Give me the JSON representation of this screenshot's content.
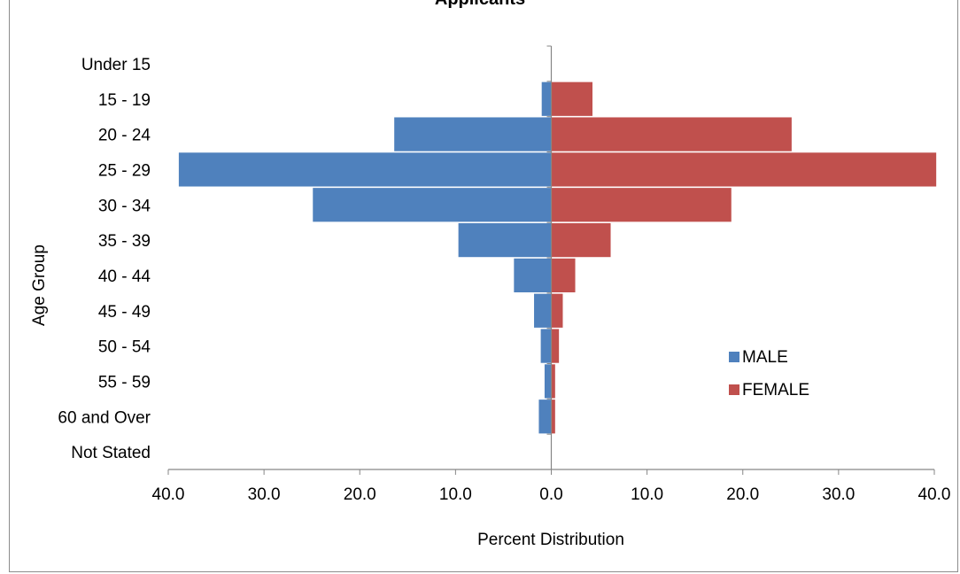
{
  "chart_data": {
    "type": "bar",
    "orientation": "horizontal",
    "title": "Applicants",
    "ylabel": "Age Group",
    "xlabel": "Percent Distribution",
    "categories": [
      "Under 15",
      "15 - 19",
      "20 - 24",
      "25 - 29",
      "30 - 34",
      "35 - 39",
      "40 - 44",
      "45 - 49",
      "50 - 54",
      "55 - 59",
      "60 and Over",
      "Not Stated"
    ],
    "series": [
      {
        "name": "MALE",
        "color": "#4f81bd",
        "values": [
          0.0,
          1.0,
          16.4,
          38.9,
          24.9,
          9.7,
          3.9,
          1.8,
          1.1,
          0.7,
          1.3,
          0.0
        ]
      },
      {
        "name": "FEMALE",
        "color": "#c0504d",
        "values": [
          0.0,
          4.3,
          25.1,
          40.2,
          18.8,
          6.2,
          2.5,
          1.2,
          0.8,
          0.4,
          0.4,
          0.0
        ]
      }
    ],
    "xlim": [
      -40,
      40
    ],
    "xticks": [
      "40.0",
      "30.0",
      "20.0",
      "10.0",
      "0.0",
      "10.0",
      "20.0",
      "30.0",
      "40.0"
    ],
    "legend_position": "lower-right",
    "grid": false
  }
}
